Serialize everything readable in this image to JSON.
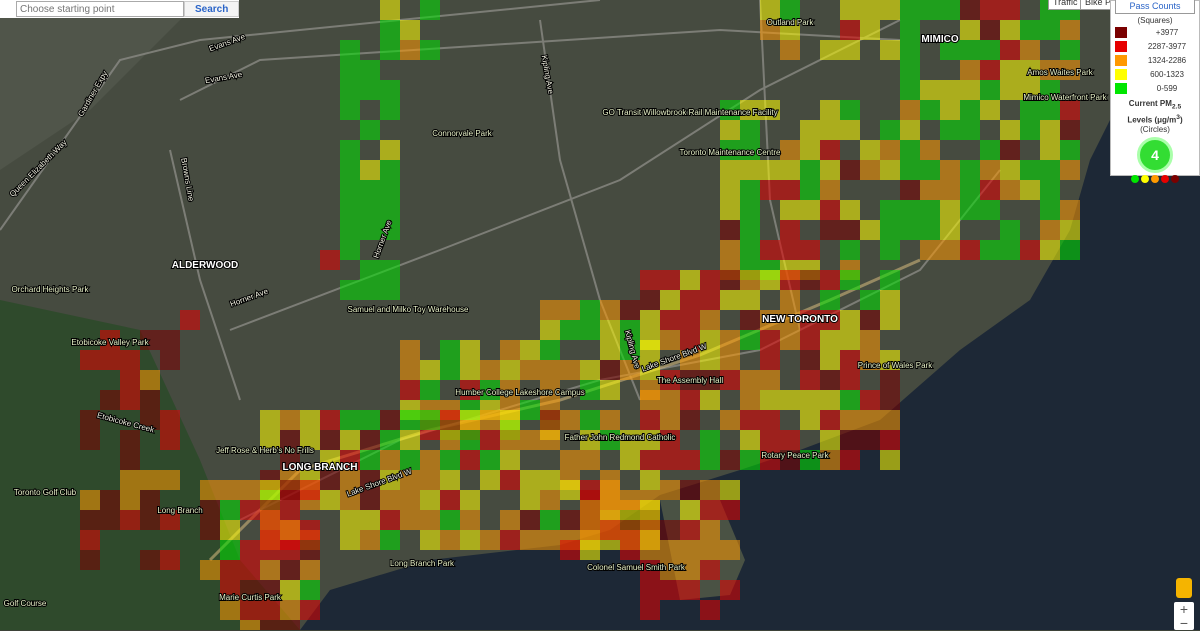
{
  "search": {
    "placeholder": "Choose starting point",
    "button": "Search"
  },
  "map_buttons": [
    "Traffic",
    "Bike Path"
  ],
  "legend": {
    "title": "Pass Counts",
    "subtitle": "(Squares)",
    "items": [
      {
        "label": "+3977",
        "color": "#7a0000"
      },
      {
        "label": "2287-3977",
        "color": "#e60000"
      },
      {
        "label": "1324-2286",
        "color": "#ff9900"
      },
      {
        "label": "600-1323",
        "color": "#ffff00"
      },
      {
        "label": "0-599",
        "color": "#00e600"
      }
    ],
    "pm_title": "Current PM",
    "pm_sub": "2.5",
    "pm_units": "Levels (μg/m",
    "pm_sup": "3",
    "pm_close": ")",
    "pm_note": "(Circles)",
    "pm_value": "4"
  },
  "map": {
    "districts": [
      "ALDERWOOD",
      "LONG BRANCH",
      "NEW TORONTO",
      "MIMICO"
    ],
    "places": [
      "Connorvale Park",
      "Orchard Heights Park",
      "Etobicoke Valley Park",
      "Toronto Golf Club",
      "Golf Course",
      "Marie Curtis Park",
      "Long Branch Park",
      "Colonel Samuel Smith Park",
      "Rotary Peace Park",
      "Prince of Wales Park",
      "Amos Waites Park",
      "Mimico Waterfront Park",
      "Humber College Lakeshore Campus",
      "The Assembly Hall",
      "Father John Redmond Catholic",
      "Samuel and Milko Toy Warehouse",
      "GO Transit Willowbrook Rail Maintenance Facility",
      "Toronto Maintenance Centre",
      "Jeff Rose & Herb's No Frills",
      "Outland Park",
      "Long Branch"
    ],
    "roads": [
      "Lake Shore Blvd W",
      "Lake Shore Blvd W",
      "Horner Ave",
      "Horner Ave",
      "Evans Ave",
      "Kipling Ave",
      "Kipling Ave",
      "Browns Line",
      "Gardiner Expy",
      "Queen Elizabeth Way",
      "Evans Ave",
      "Etobicoke Creek"
    ]
  }
}
